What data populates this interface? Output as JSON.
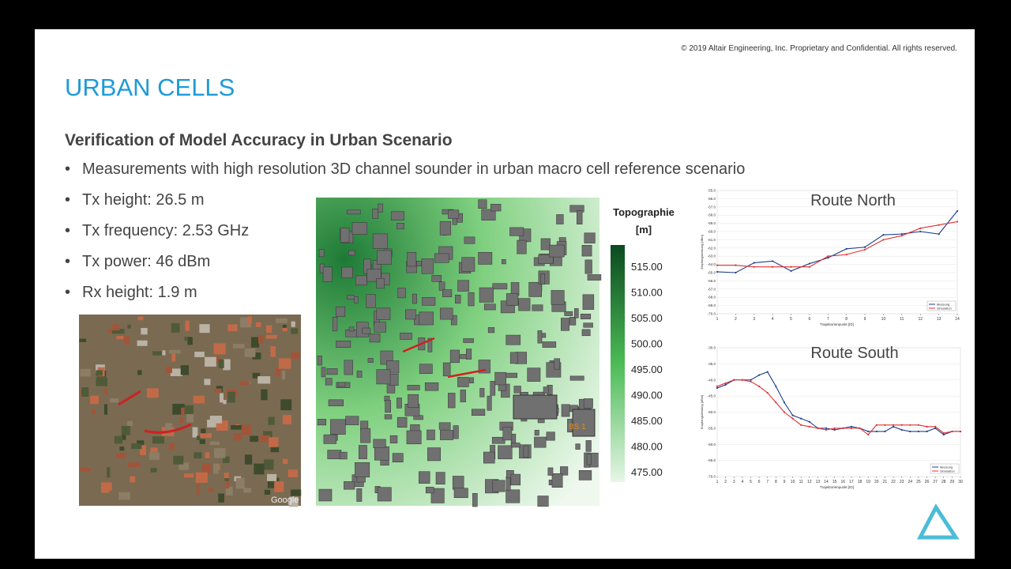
{
  "header": {
    "copyright": "© 2019 Altair Engineering, Inc. Proprietary and Confidential. All rights reserved.",
    "title": "URBAN CELLS"
  },
  "content": {
    "subtitle": "Verification of Model Accuracy in Urban Scenario",
    "bullets": [
      "Measurements with high resolution 3D channel sounder in urban macro cell reference scenario",
      "Tx height: 26.5 m",
      "Tx frequency: 2.53 GHz",
      "Tx power: 46 dBm",
      "Rx height: 1.9 m"
    ]
  },
  "map": {
    "legend_title": [
      "Topographie",
      "[m]"
    ],
    "legend_labels": [
      "515.00",
      "510.00",
      "505.00",
      "500.00",
      "495.00",
      "490.00",
      "485.00",
      "480.00",
      "475.00"
    ],
    "station": "BS 1"
  },
  "photo": {
    "credit": "Google"
  },
  "charts": [
    {
      "type": "line",
      "title": "Route North",
      "ylabel": "Empfangsleistung [dBm]",
      "xlabel": "Trajektorienpunkt [ID]",
      "x": [
        1,
        2,
        3,
        4,
        5,
        6,
        7,
        8,
        9,
        10,
        11,
        12,
        13,
        14
      ],
      "xlim": [
        1,
        14
      ],
      "xticks": [
        1,
        2,
        3,
        4,
        5,
        6,
        7,
        8,
        9,
        10,
        11,
        12,
        13,
        14
      ],
      "ylim": [
        -70,
        -55
      ],
      "yticks": [
        {
          "value": -55,
          "label": "-55.0"
        },
        {
          "value": -56,
          "label": "-56.0"
        },
        {
          "value": -57,
          "label": "-57.0"
        },
        {
          "value": -58,
          "label": "-58.0"
        },
        {
          "value": -59,
          "label": "-59.0"
        },
        {
          "value": -60,
          "label": "-60.0"
        },
        {
          "value": -61,
          "label": "-61.0"
        },
        {
          "value": -62,
          "label": "-62.0"
        },
        {
          "value": -63,
          "label": "-63.0"
        },
        {
          "value": -64,
          "label": "-64.0"
        },
        {
          "value": -65,
          "label": "-65.0"
        },
        {
          "value": -66,
          "label": "-66.0"
        },
        {
          "value": -67,
          "label": "-67.0"
        },
        {
          "value": -68,
          "label": "-68.0"
        },
        {
          "value": -69,
          "label": "-69.0"
        },
        {
          "value": -70,
          "label": "-70.0"
        }
      ],
      "series": [
        {
          "name": "Messung",
          "color": "#1f3d8c",
          "values": [
            -64.9,
            -65.0,
            -63.8,
            -63.6,
            -64.8,
            -63.9,
            -63.2,
            -62.1,
            -61.9,
            -60.4,
            -60.3,
            -60.0,
            -60.3,
            -57.5
          ]
        },
        {
          "name": "Simulation",
          "color": "#e03030",
          "values": [
            -64.1,
            -64.1,
            -64.3,
            -64.3,
            -64.3,
            -64.3,
            -63.0,
            -62.8,
            -62.2,
            -61.0,
            -60.5,
            -59.6,
            -59.2,
            -58.8
          ]
        }
      ]
    },
    {
      "type": "line",
      "title": "Route South",
      "ylabel": "Empfangsleistung [dBm]",
      "xlabel": "Trajektorienpunkt [ID]",
      "x": [
        1,
        2,
        3,
        4,
        5,
        6,
        7,
        8,
        9,
        10,
        11,
        12,
        13,
        14,
        15,
        16,
        17,
        18,
        19,
        20,
        21,
        22,
        23,
        24,
        25,
        26,
        27,
        28,
        29,
        30
      ],
      "xlim": [
        1,
        30
      ],
      "xticks": [
        1,
        2,
        3,
        4,
        5,
        6,
        7,
        8,
        9,
        10,
        11,
        12,
        13,
        14,
        15,
        16,
        17,
        18,
        19,
        20,
        21,
        22,
        23,
        24,
        25,
        26,
        27,
        28,
        29,
        30
      ],
      "ylim": [
        -70,
        -30
      ],
      "yticks": [
        {
          "value": -30,
          "label": "-30.0"
        },
        {
          "value": -35,
          "label": "-35.0"
        },
        {
          "value": -40,
          "label": "-40.0"
        },
        {
          "value": -45,
          "label": "-45.0"
        },
        {
          "value": -50,
          "label": "-50.0"
        },
        {
          "value": -55,
          "label": "-55.0"
        },
        {
          "value": -60,
          "label": "-60.0"
        },
        {
          "value": -65,
          "label": "-65.0"
        },
        {
          "value": -70,
          "label": "-70.0"
        }
      ],
      "series": [
        {
          "name": "Messung",
          "color": "#1f3d8c",
          "values": [
            -42.5,
            -41.5,
            -40,
            -40,
            -40,
            -38.5,
            -37.5,
            -42,
            -47,
            -51,
            -52,
            -53,
            -55,
            -55,
            -55.5,
            -55,
            -54.5,
            -55,
            -56,
            -56,
            -56,
            -54.5,
            -55.5,
            -56,
            -56,
            -56,
            -55,
            -57,
            -56,
            -56
          ]
        },
        {
          "name": "Simulation",
          "color": "#e03030",
          "values": [
            -42,
            -41,
            -40,
            -40,
            -40.5,
            -42,
            -44,
            -47,
            -50,
            -52,
            -54,
            -54.5,
            -55,
            -55.5,
            -55,
            -55,
            -55,
            -55,
            -57,
            -54,
            -54,
            -54,
            -54,
            -54,
            -54,
            -54.5,
            -54.5,
            -56.5,
            -56,
            -56
          ]
        }
      ]
    }
  ]
}
